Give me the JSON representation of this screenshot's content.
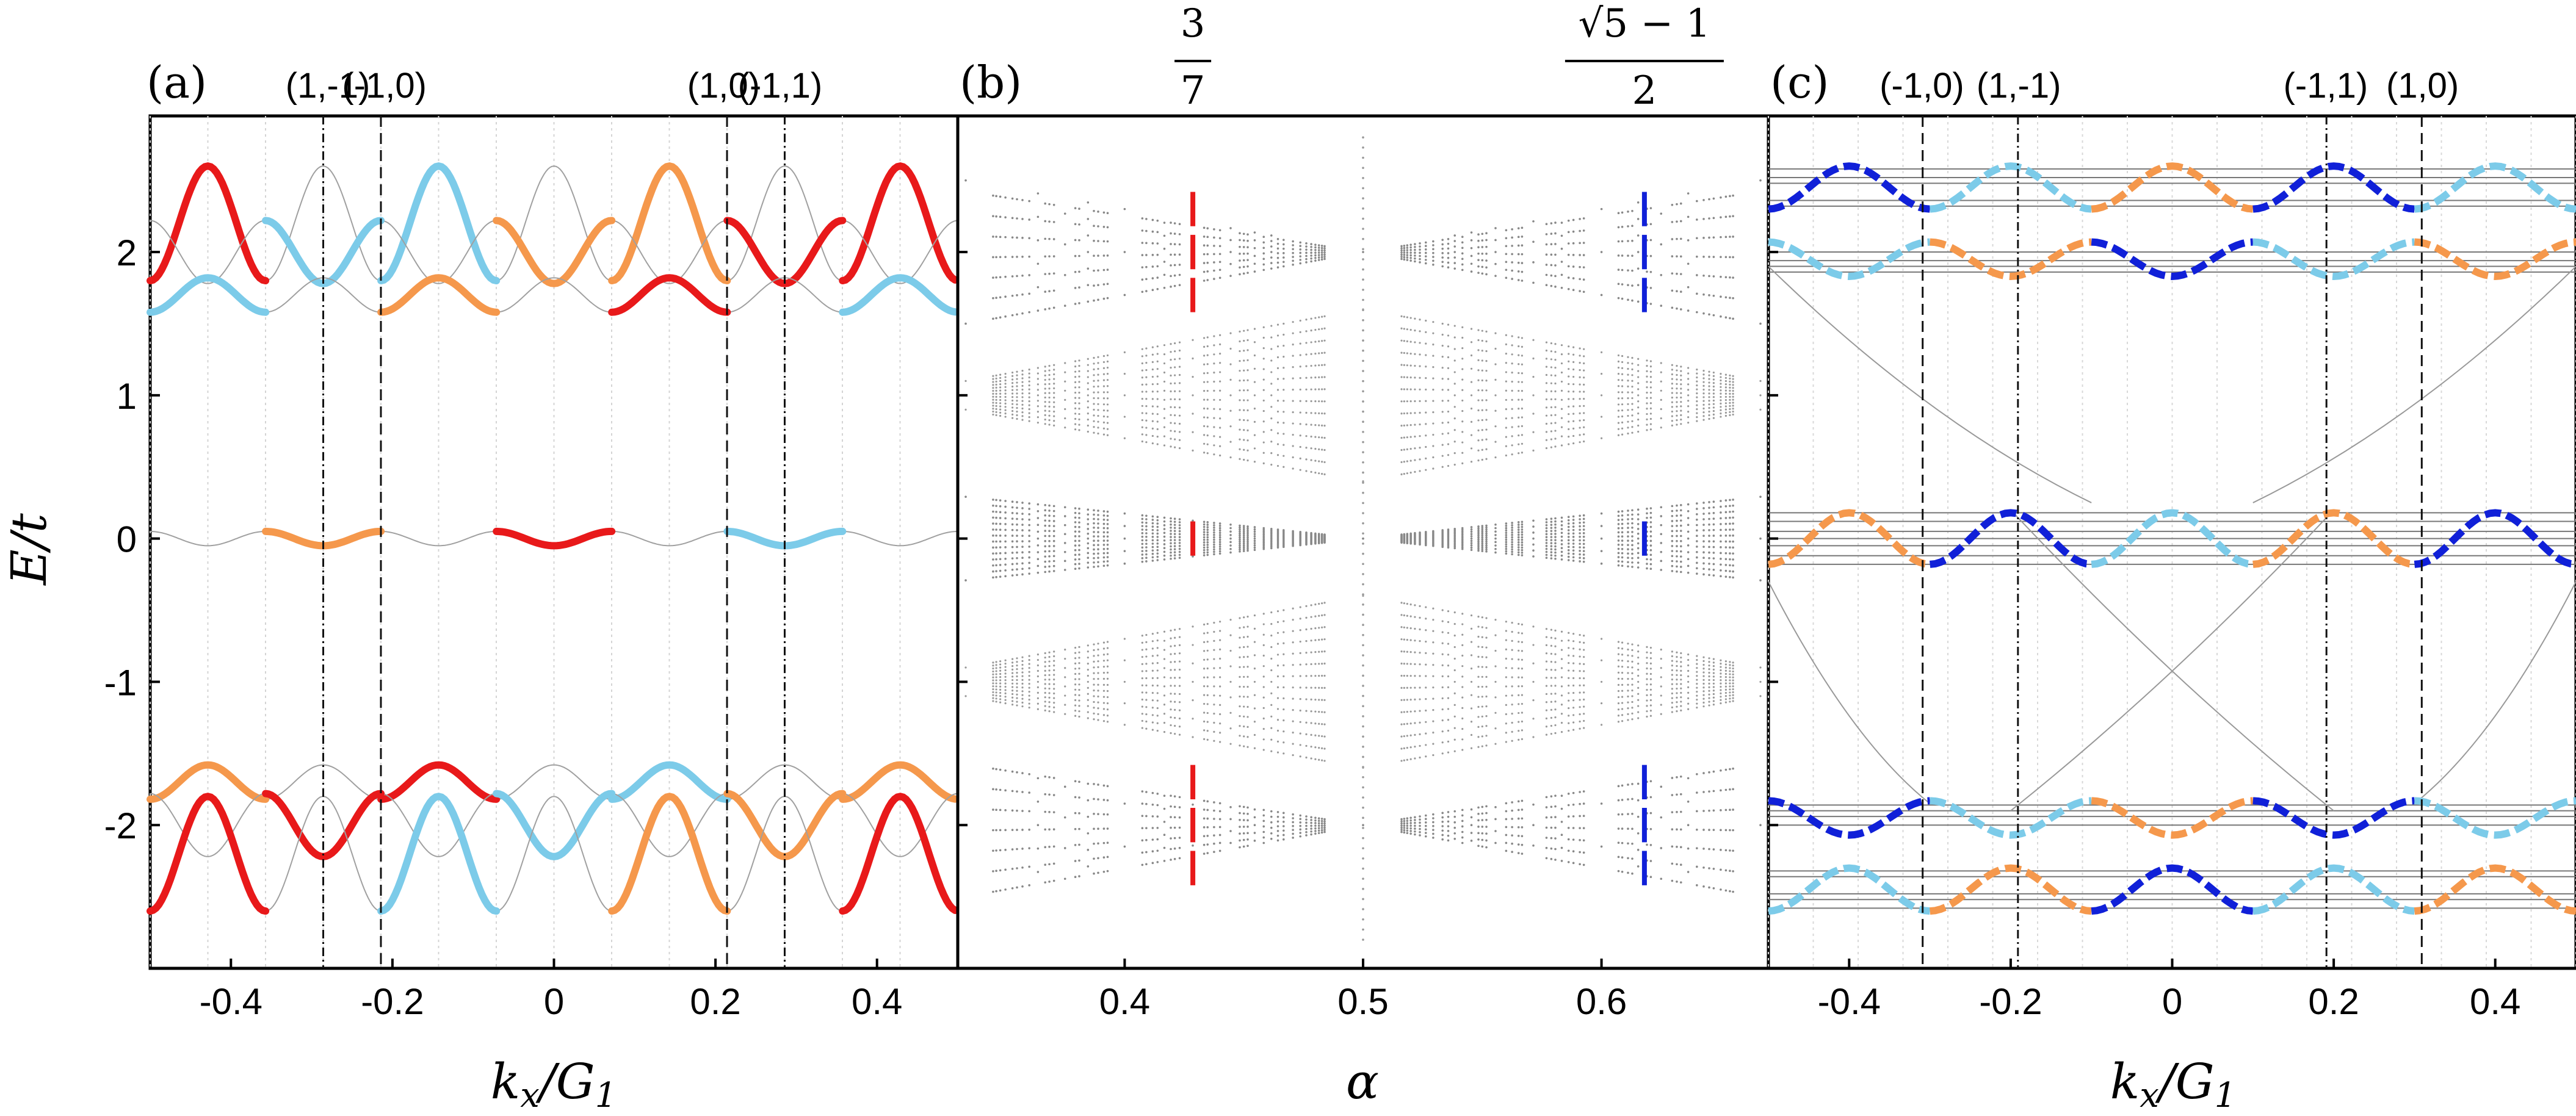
{
  "chart_data": [
    {
      "panel_label": "(a)",
      "type": "line",
      "xlabel": "k_x/G_1",
      "ylabel": "E/t",
      "xlim": [
        -0.5,
        0.5
      ],
      "ylim": [
        -3.0,
        2.95
      ],
      "x_ticks": [
        -0.4,
        -0.2,
        0,
        0.2,
        0.4
      ],
      "x_tick_labels": [
        "-0.4",
        "-0.2",
        "0",
        "0.2",
        "0.4"
      ],
      "y_ticks": [
        -2,
        -1,
        0,
        1,
        2
      ],
      "y_tick_labels": [
        "-2",
        "-1",
        "0",
        "1",
        "2"
      ],
      "top_labels": [
        {
          "x": -0.28,
          "text": "(1,-1)"
        },
        {
          "x": -0.21,
          "text": "(-1,0)"
        },
        {
          "x": 0.21,
          "text": "(1,0)"
        },
        {
          "x": 0.28,
          "text": "(-1,1)"
        }
      ],
      "vlines": [
        {
          "x": -0.2857,
          "style": "dashdot"
        },
        {
          "x": -0.2143,
          "style": "dashed"
        },
        {
          "x": 0.2143,
          "style": "dashed"
        },
        {
          "x": 0.2857,
          "style": "dashdot"
        }
      ],
      "highlight_colors": {
        "red": "#e8191a",
        "orange": "#f5984c",
        "light_blue": "#7ccbe9",
        "grey": "#a0a0a0"
      },
      "bands": [
        {
          "name": "top",
          "center": 2.2,
          "half_width": 0.4,
          "period": 0.1429,
          "phase": 0.0
        },
        {
          "name": "upper-mid",
          "center": 2.0,
          "half_width": 0.22,
          "period": 0.1429,
          "phase": 0.0714
        },
        {
          "name": "upper-low",
          "center": 1.7,
          "half_width": 0.12,
          "period": 0.1429,
          "phase": 0.0
        },
        {
          "name": "zero",
          "center": 0.0,
          "half_width": 0.05,
          "period": 0.1429,
          "phase": 0.0714
        },
        {
          "name": "lower-high",
          "center": -1.7,
          "half_width": 0.12,
          "period": 0.1429,
          "phase": 0.0
        },
        {
          "name": "lower-mid",
          "center": -2.0,
          "half_width": 0.22,
          "period": 0.1429,
          "phase": 0.0714
        },
        {
          "name": "bottom",
          "center": -2.2,
          "half_width": 0.4,
          "period": 0.1429,
          "phase": 0.0
        }
      ]
    },
    {
      "panel_label": "(b)",
      "type": "scatter",
      "xlabel": "α",
      "xlim": [
        0.33,
        0.67
      ],
      "ylim": [
        -3.0,
        2.95
      ],
      "x_ticks": [
        0.4,
        0.5,
        0.6
      ],
      "x_tick_labels": [
        "0.4",
        "0.5",
        "0.6"
      ],
      "top_labels": [
        {
          "x": 0.4286,
          "text_numerator": "3",
          "text_denominator": "7"
        },
        {
          "x": 0.618,
          "text_numerator": "√5 − 1",
          "text_denominator": "2"
        }
      ],
      "marked_columns": [
        {
          "x": 0.4286,
          "color": "#e8191a"
        },
        {
          "x": 0.618,
          "color": "#1020d8"
        }
      ]
    },
    {
      "panel_label": "(c)",
      "type": "line",
      "xlabel": "k_x/G_1",
      "xlim": [
        -0.5,
        0.5
      ],
      "ylim": [
        -3.0,
        2.95
      ],
      "x_ticks": [
        -0.4,
        -0.2,
        0,
        0.2,
        0.4
      ],
      "x_tick_labels": [
        "-0.4",
        "-0.2",
        "0",
        "0.2",
        "0.4"
      ],
      "top_labels": [
        {
          "x": -0.31,
          "text": "(-1,0)"
        },
        {
          "x": -0.19,
          "text": "(1,-1)"
        },
        {
          "x": 0.19,
          "text": "(-1,1)"
        },
        {
          "x": 0.31,
          "text": "(1,0)"
        }
      ],
      "vlines": [
        {
          "x": -0.309,
          "style": "dashed"
        },
        {
          "x": -0.191,
          "style": "dashdot"
        },
        {
          "x": 0.191,
          "style": "dashdot"
        },
        {
          "x": 0.309,
          "style": "dashed"
        }
      ],
      "highlight_colors": {
        "blue": "#1020d8",
        "orange": "#f5984c",
        "light_blue": "#7ccbe9",
        "grey": "#a0a0a0"
      }
    }
  ]
}
